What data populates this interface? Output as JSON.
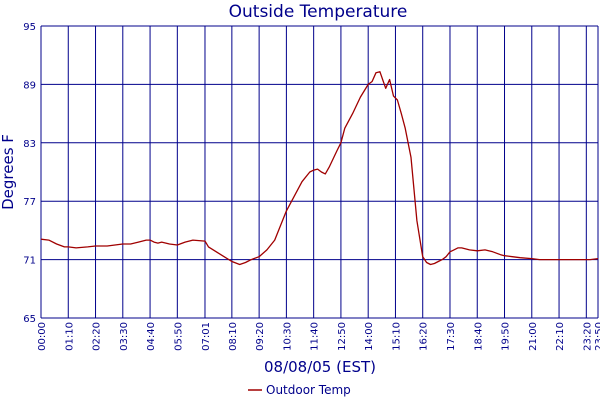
{
  "chart_data": {
    "type": "line",
    "title": "Outside Temperature",
    "xlabel": "08/08/05 (EST)",
    "ylabel": "Degrees F",
    "ylim": [
      65,
      95
    ],
    "yticks": [
      65,
      71,
      77,
      83,
      89,
      95
    ],
    "xticks": [
      "00:00",
      "01:10",
      "02:20",
      "03:30",
      "04:40",
      "05:50",
      "07:01",
      "08:10",
      "09:20",
      "10:30",
      "11:40",
      "12:50",
      "14:00",
      "15:10",
      "16:20",
      "17:30",
      "18:40",
      "19:50",
      "21:00",
      "22:10",
      "23:20",
      "23:50"
    ],
    "xlim": [
      "00:00",
      "23:50"
    ],
    "grid": true,
    "legend_position": "bottom-center",
    "colors": {
      "series": "#a00000",
      "grid": "#00008b",
      "text": "#00008b"
    },
    "series": [
      {
        "name": "Outdoor Temp",
        "x": [
          "00:00",
          "00:20",
          "00:40",
          "01:00",
          "01:10",
          "01:30",
          "02:00",
          "02:20",
          "02:50",
          "03:10",
          "03:30",
          "03:50",
          "04:10",
          "04:30",
          "04:40",
          "04:50",
          "05:00",
          "05:10",
          "05:30",
          "05:50",
          "06:10",
          "06:30",
          "07:01",
          "07:10",
          "07:30",
          "07:50",
          "08:10",
          "08:30",
          "08:45",
          "09:00",
          "09:20",
          "09:40",
          "10:00",
          "10:10",
          "10:30",
          "10:50",
          "11:10",
          "11:30",
          "11:40",
          "11:50",
          "12:00",
          "12:10",
          "12:20",
          "12:40",
          "12:50",
          "13:00",
          "13:20",
          "13:40",
          "14:00",
          "14:10",
          "14:20",
          "14:30",
          "14:45",
          "14:55",
          "15:05",
          "15:15",
          "15:25",
          "15:35",
          "15:50",
          "16:05",
          "16:20",
          "16:30",
          "16:40",
          "16:50",
          "17:00",
          "17:10",
          "17:20",
          "17:30",
          "17:40",
          "17:50",
          "18:00",
          "18:20",
          "18:40",
          "19:00",
          "19:20",
          "19:40",
          "19:50",
          "20:10",
          "20:30",
          "21:00",
          "21:20",
          "21:40",
          "22:00",
          "22:10",
          "22:30",
          "22:50",
          "23:10",
          "23:20",
          "23:30",
          "23:50"
        ],
        "values": [
          73.1,
          73.0,
          72.6,
          72.3,
          72.3,
          72.2,
          72.3,
          72.4,
          72.4,
          72.5,
          72.6,
          72.6,
          72.8,
          73.0,
          73.0,
          72.8,
          72.7,
          72.8,
          72.6,
          72.5,
          72.8,
          73.0,
          72.9,
          72.3,
          71.8,
          71.3,
          70.8,
          70.5,
          70.7,
          71.0,
          71.3,
          72.0,
          73.0,
          74.0,
          76.0,
          77.5,
          79.0,
          80.0,
          80.2,
          80.3,
          80.0,
          79.8,
          80.5,
          82.2,
          83.0,
          84.5,
          86.0,
          87.7,
          89.0,
          89.3,
          90.2,
          90.3,
          88.6,
          89.5,
          87.8,
          87.4,
          86.0,
          84.5,
          81.5,
          75.0,
          71.3,
          70.7,
          70.5,
          70.6,
          70.8,
          71.0,
          71.3,
          71.8,
          72.0,
          72.2,
          72.2,
          72.0,
          71.9,
          72.0,
          71.8,
          71.5,
          71.4,
          71.3,
          71.2,
          71.1,
          71.0,
          71.0,
          71.0,
          71.0,
          71.0,
          71.0,
          71.0,
          71.0,
          71.0,
          71.1
        ]
      }
    ]
  }
}
